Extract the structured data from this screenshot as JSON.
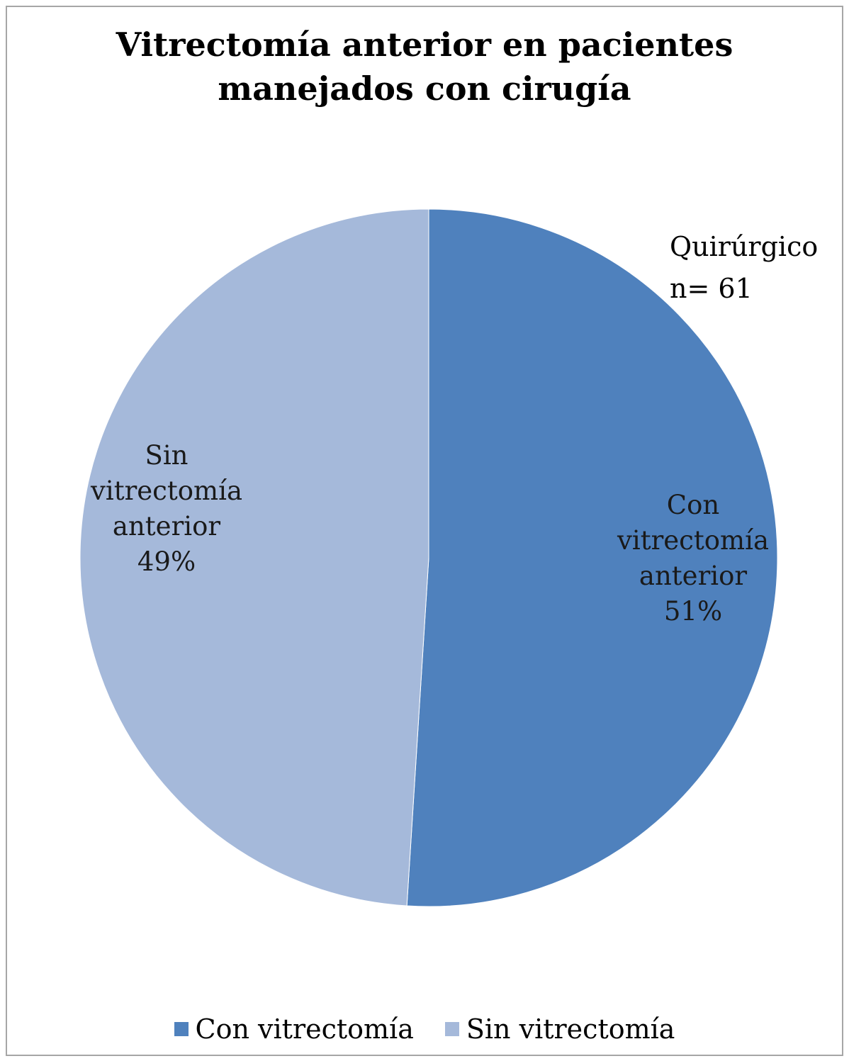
{
  "chart_data": {
    "type": "pie",
    "title": [
      "Vitrectomía anterior en pacientes",
      "manejados con cirugía"
    ],
    "annotation": [
      "Quirúrgico",
      "n= 61"
    ],
    "slices": [
      {
        "name": "Con vitrectomía",
        "label_lines": [
          "Con",
          "vitrectomía",
          "anterior",
          "51%"
        ],
        "value": 51,
        "color": "#4f81bd"
      },
      {
        "name": "Sin vitrectomía",
        "label_lines": [
          "Sin",
          "vitrectomía",
          "anterior",
          "49%"
        ],
        "value": 49,
        "color": "#a5b9da"
      }
    ],
    "legend": {
      "position": "bottom",
      "entries": [
        {
          "label": "Con vitrectomía",
          "color": "#4f81bd"
        },
        {
          "label": "Sin vitrectomía",
          "color": "#a5b9da"
        }
      ]
    }
  }
}
